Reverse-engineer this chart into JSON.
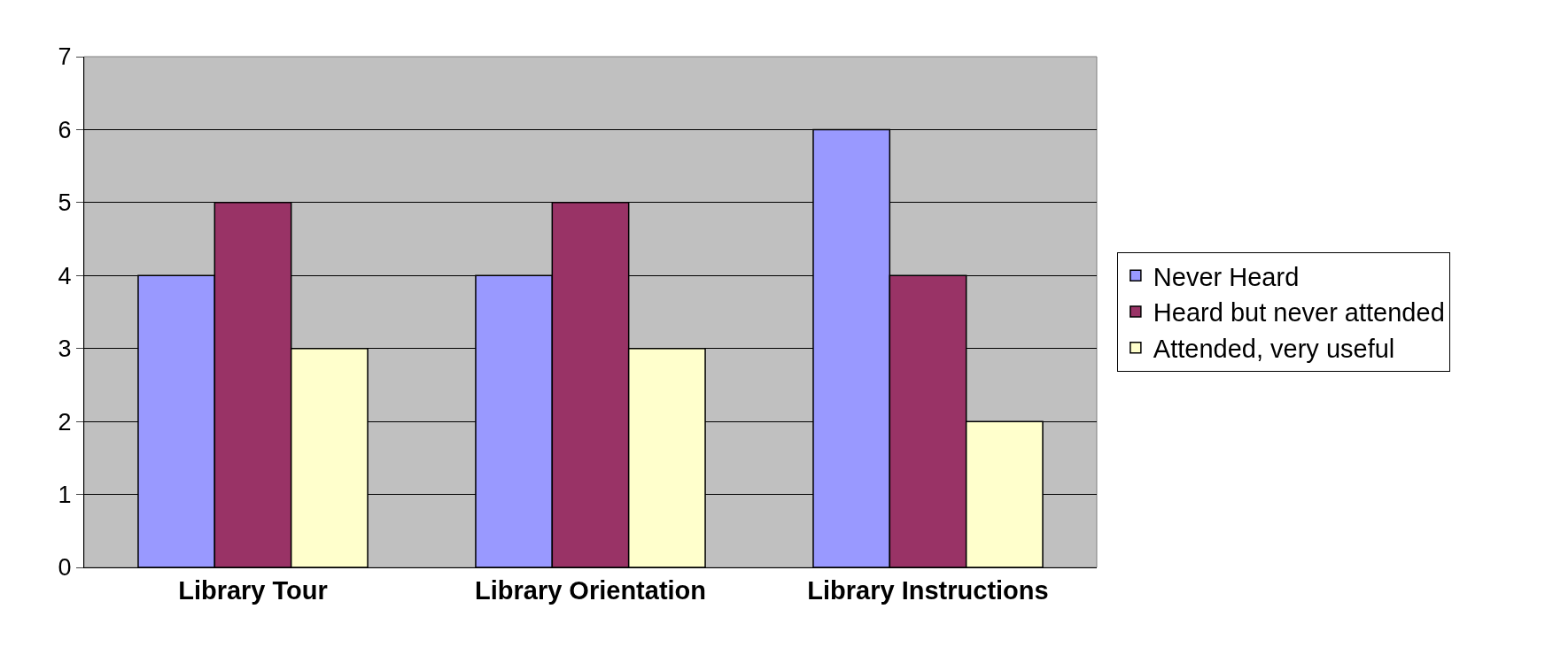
{
  "chart_data": {
    "type": "bar",
    "categories": [
      "Library Tour",
      "Library Orientation",
      "Library Instructions"
    ],
    "series": [
      {
        "name": "Never Heard",
        "color": "#9999ff",
        "values": [
          4,
          4,
          6
        ]
      },
      {
        "name": "Heard but never attended",
        "color": "#993366",
        "values": [
          5,
          5,
          4
        ]
      },
      {
        "name": "Attended, very useful",
        "color": "#ffffcc",
        "values": [
          3,
          3,
          2
        ]
      }
    ],
    "ylim": [
      0,
      7
    ],
    "yticks": [
      0,
      1,
      2,
      3,
      4,
      5,
      6,
      7
    ],
    "grid": "y",
    "legend": "right"
  }
}
